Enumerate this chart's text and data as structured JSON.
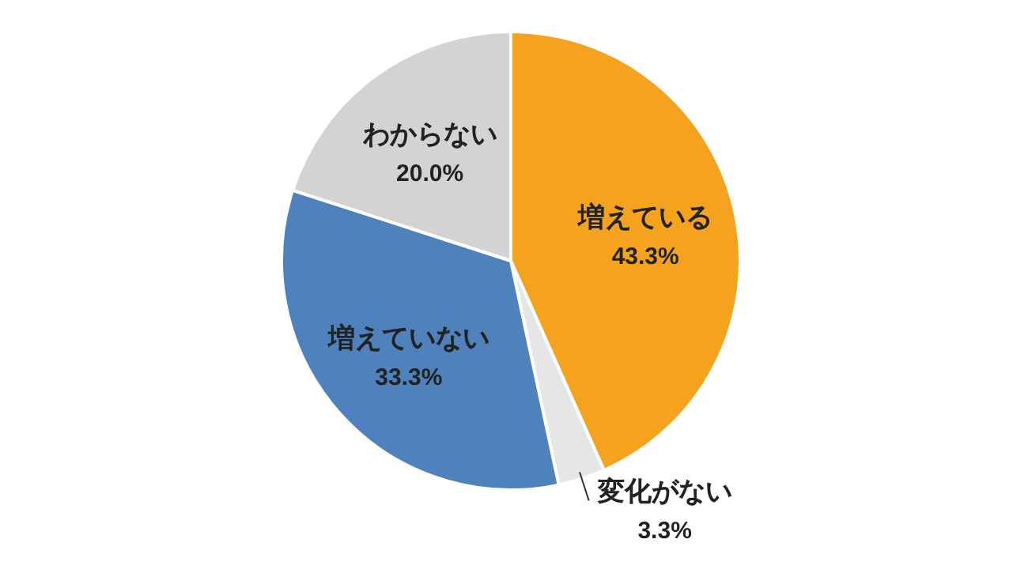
{
  "chart_data": {
    "type": "pie",
    "categories": [
      "増えている",
      "変化がない",
      "増えていない",
      "わからない"
    ],
    "values": [
      43.3,
      3.3,
      33.3,
      20.0
    ],
    "value_labels": [
      "43.3%",
      "3.3%",
      "33.3%",
      "20.0%"
    ],
    "colors": [
      "#f5a21f",
      "#e6e6e6",
      "#4f81bd",
      "#d3d3d3"
    ],
    "legend": false
  }
}
